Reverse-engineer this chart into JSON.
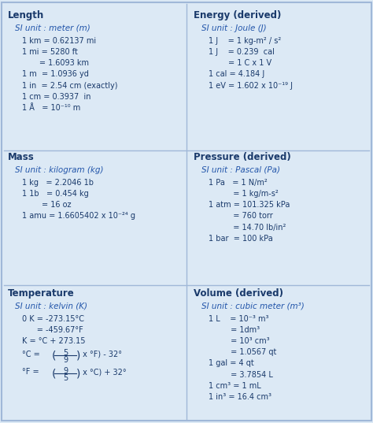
{
  "bg_color": "#dce9f5",
  "title_color": "#1a3a6b",
  "si_color": "#2255aa",
  "text_color": "#1a3a6b",
  "border_color": "#a0b8d8",
  "length_title": "Length",
  "length_si": "SI unit : meter (m)",
  "length_lines": [
    "1 km = 0.62137 mi",
    "1 mi = 5280 ft",
    "       = 1.6093 km",
    "1 m  = 1.0936 yd",
    "1 in  = 2.54 cm (exactly)",
    "1 cm = 0.3937  in",
    "1 Å   = 10⁻¹⁰ m"
  ],
  "mass_title": "Mass",
  "mass_si": "SI unit : kilogram (kg)",
  "mass_lines": [
    "1 kg   = 2.2046 1b",
    "1 1b   = 0.454 kg",
    "        = 16 oz",
    "1 amu = 1.6605402 x 10⁻²⁴ g"
  ],
  "energy_title": "Energy (derived)",
  "energy_si": "SI unit : Joule (J)",
  "energy_lines": [
    "1 J    = 1 kg-m² / s²",
    "1 J    = 0.239  cal",
    "        = 1 C x 1 V",
    "1 cal = 4.184 J",
    "1 eV = 1.602 x 10⁻¹⁹ J"
  ],
  "pressure_title": "Pressure (derived)",
  "pressure_si": "SI unit : Pascal (Pa)",
  "pressure_lines": [
    "1 Pa   = 1 N/m²",
    "          = 1 kg/m-s²",
    "1 atm = 101.325 kPa",
    "          = 760 torr",
    "          = 14.70 lb/in²",
    "1 bar  = 100 kPa"
  ],
  "temp_title": "Temperature",
  "temp_si": "SI unit : kelvin (K)",
  "temp_lines": [
    "0 K = -273.15°C",
    "      = -459.67°F",
    "K = °C + 273.15",
    "°C = (5/9 x °F) - 32°",
    "°F = (9/5 x °C) + 32°"
  ],
  "volume_title": "Volume (derived)",
  "volume_si": "SI unit : cubic meter (m³)",
  "volume_lines": [
    "1 L    = 10⁻³ m³",
    "         = 1dm³",
    "         = 10³ cm³",
    "         = 1.0567 qt",
    "1 gal = 4 qt",
    "         = 3.7854 L",
    "1 cm³ = 1 mL",
    "1 in³ = 16.4 cm³"
  ]
}
